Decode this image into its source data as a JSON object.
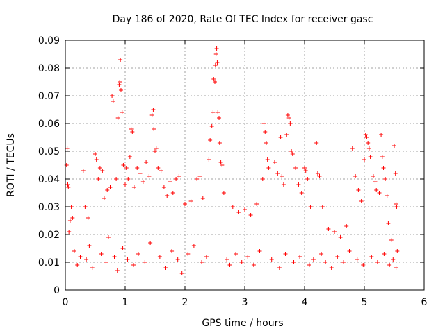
{
  "chart_data": {
    "type": "scatter",
    "title": "Day 186 of 2020, Rate Of TEC Index for receiver gasc",
    "xlabel": "GPS time / hours",
    "ylabel": "ROTI / TECUs",
    "xlim": [
      0,
      6
    ],
    "ylim": [
      0,
      0.09
    ],
    "xticks": [
      "0",
      "1",
      "2",
      "3",
      "4",
      "5",
      "6"
    ],
    "yticks": [
      "0",
      "0.01",
      "0.02",
      "0.03",
      "0.04",
      "0.05",
      "0.06",
      "0.07",
      "0.08",
      "0.09"
    ],
    "grid": true,
    "marker": "+",
    "series_color": "#ff0000",
    "series": [
      {
        "name": "ROTI",
        "points": [
          [
            0.02,
            0.045
          ],
          [
            0.03,
            0.051
          ],
          [
            0.04,
            0.038
          ],
          [
            0.05,
            0.037
          ],
          [
            0.06,
            0.021
          ],
          [
            0.08,
            0.025
          ],
          [
            0.1,
            0.03
          ],
          [
            0.12,
            0.026
          ],
          [
            0.3,
            0.043
          ],
          [
            0.33,
            0.03
          ],
          [
            0.38,
            0.026
          ],
          [
            0.5,
            0.049
          ],
          [
            0.52,
            0.047
          ],
          [
            0.55,
            0.04
          ],
          [
            0.58,
            0.044
          ],
          [
            0.62,
            0.043
          ],
          [
            0.65,
            0.033
          ],
          [
            0.7,
            0.036
          ],
          [
            0.75,
            0.037
          ],
          [
            0.78,
            0.07
          ],
          [
            0.8,
            0.068
          ],
          [
            0.85,
            0.04
          ],
          [
            0.88,
            0.062
          ],
          [
            0.9,
            0.074
          ],
          [
            0.91,
            0.075
          ],
          [
            0.92,
            0.083
          ],
          [
            0.93,
            0.072
          ],
          [
            0.95,
            0.064
          ],
          [
            0.97,
            0.045
          ],
          [
            1.0,
            0.038
          ],
          [
            1.02,
            0.044
          ],
          [
            1.05,
            0.04
          ],
          [
            1.08,
            0.048
          ],
          [
            1.1,
            0.058
          ],
          [
            1.12,
            0.057
          ],
          [
            1.15,
            0.037
          ],
          [
            1.2,
            0.044
          ],
          [
            1.25,
            0.042
          ],
          [
            1.3,
            0.039
          ],
          [
            1.35,
            0.046
          ],
          [
            1.4,
            0.041
          ],
          [
            1.45,
            0.063
          ],
          [
            1.47,
            0.065
          ],
          [
            1.48,
            0.058
          ],
          [
            1.5,
            0.05
          ],
          [
            1.52,
            0.051
          ],
          [
            1.55,
            0.044
          ],
          [
            1.6,
            0.043
          ],
          [
            1.65,
            0.037
          ],
          [
            1.7,
            0.034
          ],
          [
            1.75,
            0.039
          ],
          [
            1.8,
            0.035
          ],
          [
            1.85,
            0.04
          ],
          [
            1.9,
            0.041
          ],
          [
            2.0,
            0.031
          ],
          [
            2.1,
            0.032
          ],
          [
            2.2,
            0.04
          ],
          [
            2.25,
            0.041
          ],
          [
            2.3,
            0.033
          ],
          [
            2.4,
            0.047
          ],
          [
            2.42,
            0.054
          ],
          [
            2.45,
            0.059
          ],
          [
            2.47,
            0.064
          ],
          [
            2.48,
            0.076
          ],
          [
            2.5,
            0.075
          ],
          [
            2.51,
            0.081
          ],
          [
            2.52,
            0.085
          ],
          [
            2.53,
            0.087
          ],
          [
            2.54,
            0.082
          ],
          [
            2.55,
            0.064
          ],
          [
            2.57,
            0.062
          ],
          [
            2.58,
            0.053
          ],
          [
            2.6,
            0.046
          ],
          [
            2.62,
            0.045
          ],
          [
            2.65,
            0.035
          ],
          [
            2.8,
            0.03
          ],
          [
            2.9,
            0.028
          ],
          [
            3.0,
            0.029
          ],
          [
            3.1,
            0.027
          ],
          [
            3.2,
            0.031
          ],
          [
            3.3,
            0.04
          ],
          [
            3.32,
            0.06
          ],
          [
            3.34,
            0.057
          ],
          [
            3.36,
            0.053
          ],
          [
            3.38,
            0.047
          ],
          [
            3.4,
            0.044
          ],
          [
            3.5,
            0.046
          ],
          [
            3.55,
            0.042
          ],
          [
            3.6,
            0.055
          ],
          [
            3.62,
            0.041
          ],
          [
            3.65,
            0.038
          ],
          [
            3.7,
            0.056
          ],
          [
            3.72,
            0.063
          ],
          [
            3.74,
            0.062
          ],
          [
            3.76,
            0.06
          ],
          [
            3.78,
            0.05
          ],
          [
            3.8,
            0.049
          ],
          [
            3.85,
            0.044
          ],
          [
            3.9,
            0.038
          ],
          [
            3.95,
            0.035
          ],
          [
            4.0,
            0.044
          ],
          [
            4.02,
            0.043
          ],
          [
            4.05,
            0.04
          ],
          [
            4.1,
            0.03
          ],
          [
            4.2,
            0.053
          ],
          [
            4.22,
            0.042
          ],
          [
            4.25,
            0.041
          ],
          [
            4.3,
            0.03
          ],
          [
            4.4,
            0.022
          ],
          [
            4.5,
            0.021
          ],
          [
            4.6,
            0.019
          ],
          [
            4.7,
            0.023
          ],
          [
            4.8,
            0.051
          ],
          [
            4.85,
            0.041
          ],
          [
            4.9,
            0.036
          ],
          [
            4.95,
            0.032
          ],
          [
            5.0,
            0.047
          ],
          [
            5.02,
            0.056
          ],
          [
            5.04,
            0.055
          ],
          [
            5.06,
            0.053
          ],
          [
            5.08,
            0.051
          ],
          [
            5.1,
            0.048
          ],
          [
            5.15,
            0.041
          ],
          [
            5.18,
            0.039
          ],
          [
            5.2,
            0.036
          ],
          [
            5.25,
            0.035
          ],
          [
            5.28,
            0.056
          ],
          [
            5.3,
            0.048
          ],
          [
            5.32,
            0.044
          ],
          [
            5.35,
            0.04
          ],
          [
            5.38,
            0.034
          ],
          [
            5.4,
            0.024
          ],
          [
            5.45,
            0.018
          ],
          [
            5.5,
            0.052
          ],
          [
            5.52,
            0.042
          ],
          [
            5.53,
            0.031
          ],
          [
            5.54,
            0.03
          ],
          [
            5.55,
            0.014
          ],
          [
            0.15,
            0.014
          ],
          [
            0.2,
            0.009
          ],
          [
            0.25,
            0.012
          ],
          [
            0.35,
            0.011
          ],
          [
            0.4,
            0.016
          ],
          [
            0.45,
            0.008
          ],
          [
            0.6,
            0.013
          ],
          [
            0.68,
            0.01
          ],
          [
            0.72,
            0.019
          ],
          [
            0.82,
            0.012
          ],
          [
            0.87,
            0.007
          ],
          [
            0.96,
            0.015
          ],
          [
            1.04,
            0.011
          ],
          [
            1.14,
            0.009
          ],
          [
            1.22,
            0.013
          ],
          [
            1.33,
            0.01
          ],
          [
            1.42,
            0.017
          ],
          [
            1.58,
            0.012
          ],
          [
            1.68,
            0.008
          ],
          [
            1.78,
            0.014
          ],
          [
            1.88,
            0.011
          ],
          [
            1.95,
            0.006
          ],
          [
            2.05,
            0.013
          ],
          [
            2.15,
            0.016
          ],
          [
            2.28,
            0.01
          ],
          [
            2.36,
            0.012
          ],
          [
            2.7,
            0.011
          ],
          [
            2.75,
            0.009
          ],
          [
            2.85,
            0.013
          ],
          [
            2.95,
            0.01
          ],
          [
            3.05,
            0.012
          ],
          [
            3.15,
            0.009
          ],
          [
            3.25,
            0.014
          ],
          [
            3.45,
            0.011
          ],
          [
            3.58,
            0.008
          ],
          [
            3.68,
            0.013
          ],
          [
            3.82,
            0.01
          ],
          [
            3.92,
            0.012
          ],
          [
            4.08,
            0.009
          ],
          [
            4.15,
            0.011
          ],
          [
            4.28,
            0.013
          ],
          [
            4.35,
            0.01
          ],
          [
            4.45,
            0.008
          ],
          [
            4.55,
            0.012
          ],
          [
            4.65,
            0.01
          ],
          [
            4.75,
            0.014
          ],
          [
            4.88,
            0.011
          ],
          [
            4.98,
            0.009
          ],
          [
            5.12,
            0.012
          ],
          [
            5.22,
            0.01
          ],
          [
            5.33,
            0.013
          ],
          [
            5.42,
            0.009
          ],
          [
            5.48,
            0.011
          ],
          [
            5.53,
            0.008
          ]
        ]
      }
    ]
  }
}
